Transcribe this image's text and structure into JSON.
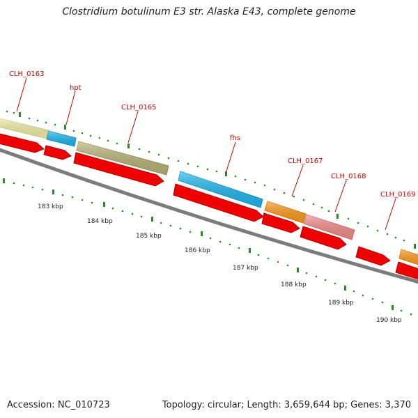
{
  "title": "Clostridium botulinum E3 str. Alaska E43, complete genome",
  "footer": {
    "accession": "Accession: NC_010723",
    "summary": "Topology: circular; Length: 3,659,644 bp; Genes: 3,370"
  },
  "gene_labels": [
    "CLH_0163",
    "hpt",
    "CLH_0165",
    "fhs",
    "CLH_0167",
    "CLH_0168",
    "CLH_0169"
  ],
  "axis_labels": [
    "183 kbp",
    "184 kbp",
    "185 kbp",
    "186 kbp",
    "187 kbp",
    "188 kbp",
    "189 kbp",
    "190 kbp"
  ],
  "colors": {
    "label_red": "#cc0000",
    "tick_green": "#2a8a2a",
    "backbone": "#808080",
    "cds_red": "#ee0000",
    "feature_yellow": "#f3efa8",
    "feature_blue": "#1cb8f0",
    "feature_olive": "#b9b478",
    "feature_orange": "#ff9a18",
    "feature_pink": "#f48c8c"
  }
}
